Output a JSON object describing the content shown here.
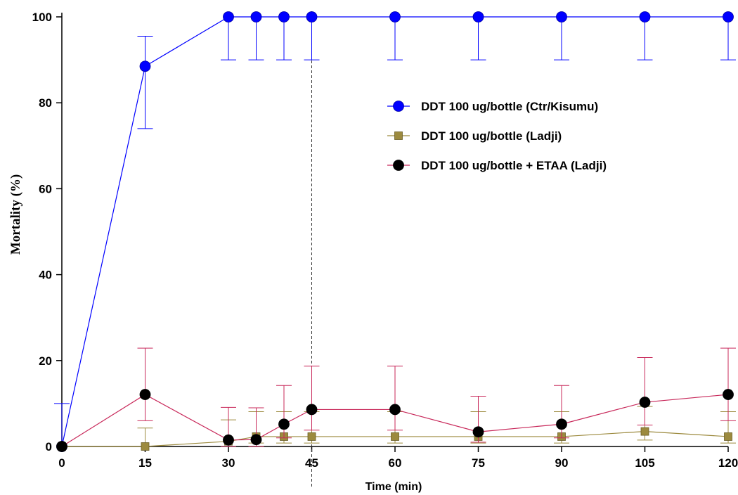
{
  "chart_data": {
    "type": "line",
    "title": "",
    "xlabel": "Time (min)",
    "ylabel": "Mortality (%)",
    "xlim": [
      0,
      120
    ],
    "ylim": [
      0,
      100
    ],
    "x_ticks": [
      0,
      15,
      30,
      45,
      60,
      75,
      90,
      105,
      120
    ],
    "y_ticks": [
      0,
      20,
      40,
      60,
      80,
      100
    ],
    "grid": false,
    "legend_position": "upper-right",
    "reference_line": {
      "x": 45,
      "style": "dashed"
    },
    "x": [
      0,
      15,
      30,
      35,
      40,
      45,
      60,
      75,
      90,
      105,
      120
    ],
    "series": [
      {
        "name": "DDT 100 ug/bottle (Ctr/Kisumu)",
        "marker": "circle",
        "color": "#0000ff",
        "values": [
          0,
          88.5,
          100,
          100,
          100,
          100,
          100,
          100,
          100,
          100,
          100
        ],
        "err_low": [
          0,
          14.5,
          10,
          10,
          10,
          10,
          10,
          10,
          10,
          10,
          10
        ],
        "err_high": [
          10,
          7,
          0,
          0,
          0,
          0,
          0,
          0,
          0,
          0,
          0
        ]
      },
      {
        "name": "DDT 100 ug/bottle (Ladji)",
        "marker": "square",
        "color": "#9c8a3e",
        "values": [
          0,
          0,
          1.2,
          2.3,
          2.3,
          2.3,
          2.3,
          2.3,
          2.3,
          3.5,
          2.3
        ],
        "err_low": [
          0,
          0,
          1.2,
          1.5,
          1.5,
          1.5,
          1.5,
          1.5,
          1.5,
          2.0,
          1.5
        ],
        "err_high": [
          0,
          4.3,
          5.0,
          5.8,
          5.8,
          5.8,
          5.8,
          5.8,
          5.8,
          5.8,
          5.8
        ]
      },
      {
        "name": "DDT 100 ug/bottle + ETAA (Ladji)",
        "marker": "circle",
        "color": "#c8285a",
        "marker_color": "#000000",
        "values": [
          0,
          12.1,
          1.5,
          1.6,
          5.2,
          8.6,
          8.6,
          3.4,
          5.2,
          10.3,
          12.1
        ],
        "err_low": [
          0,
          6.1,
          1.5,
          1.6,
          3.2,
          4.8,
          4.8,
          2.4,
          3.2,
          5.3,
          6.1
        ],
        "err_high": [
          0,
          10.8,
          7.6,
          7.4,
          9.0,
          10.1,
          10.1,
          8.3,
          9.0,
          10.4,
          10.8
        ]
      }
    ]
  }
}
